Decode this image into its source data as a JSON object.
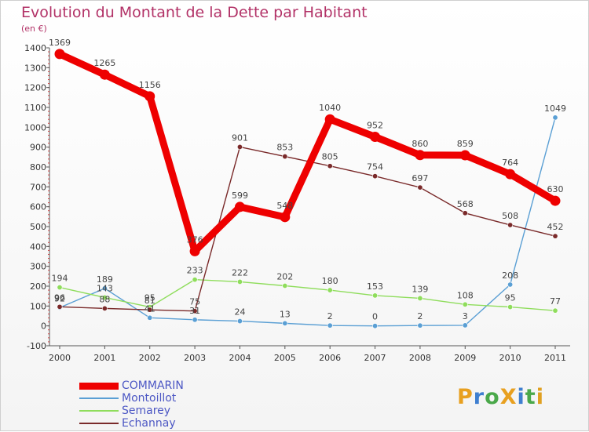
{
  "chart_data": {
    "type": "line",
    "title": "Evolution du Montant de la Dette par Habitant",
    "subtitle": "(en €)",
    "xlabel": "",
    "ylabel": "",
    "categories": [
      "2000",
      "2001",
      "2002",
      "2003",
      "2004",
      "2005",
      "2006",
      "2007",
      "2008",
      "2009",
      "2010",
      "2011"
    ],
    "ylim": [
      -100,
      1400
    ],
    "yticks": [
      -100,
      0,
      100,
      200,
      300,
      400,
      500,
      600,
      700,
      800,
      900,
      1000,
      1100,
      1200,
      1300,
      1400
    ],
    "grid": false,
    "legend_position": "bottom-left",
    "series": [
      {
        "name": "COMMARIN",
        "color": "#ee0000",
        "emphasis": true,
        "values": [
          1369,
          1265,
          1156,
          376,
          599,
          548,
          1040,
          952,
          860,
          859,
          764,
          630
        ]
      },
      {
        "name": "Montoillot",
        "color": "#5a9fd4",
        "emphasis": false,
        "values": [
          92,
          189,
          41,
          31,
          24,
          13,
          2,
          0,
          2,
          3,
          208,
          1049
        ]
      },
      {
        "name": "Semarey",
        "color": "#8fdd5c",
        "emphasis": false,
        "values": [
          194,
          143,
          95,
          233,
          222,
          202,
          180,
          153,
          139,
          108,
          95,
          77
        ]
      },
      {
        "name": "Echannay",
        "color": "#7a2a2a",
        "emphasis": false,
        "values": [
          96,
          88,
          81,
          75,
          901,
          853,
          805,
          754,
          697,
          568,
          508,
          452
        ]
      }
    ]
  },
  "brand": {
    "text": "ProXiti",
    "letters": [
      {
        "ch": "P",
        "color": "#e8a020"
      },
      {
        "ch": "r",
        "color": "#3f7fd0"
      },
      {
        "ch": "o",
        "color": "#4aa84a"
      },
      {
        "ch": "X",
        "color": "#e8a020"
      },
      {
        "ch": "i",
        "color": "#3f7fd0"
      },
      {
        "ch": "t",
        "color": "#4aa84a"
      },
      {
        "ch": "i",
        "color": "#e0a020"
      }
    ]
  }
}
